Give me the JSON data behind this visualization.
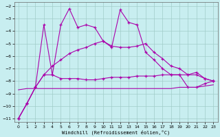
{
  "xlabel": "Windchill (Refroidissement éolien,°C)",
  "bg_color": "#c8eef0",
  "grid_color": "#a0ccc8",
  "line_color": "#aa00aa",
  "xmin": 0,
  "xmax": 23,
  "ymin": -11,
  "ymax": -2,
  "hours": [
    0,
    1,
    2,
    3,
    4,
    5,
    6,
    7,
    8,
    9,
    10,
    11,
    12,
    13,
    14,
    15,
    16,
    17,
    18,
    19,
    20,
    21,
    22,
    23
  ],
  "line1": [
    -11.0,
    -9.8,
    -8.5,
    -3.5,
    -7.5,
    -3.5,
    -2.2,
    -3.7,
    -3.5,
    -3.7,
    -4.8,
    -5.3,
    -2.3,
    -3.3,
    -3.5,
    -5.7,
    -6.3,
    -7.0,
    -7.5,
    -7.5,
    -8.5,
    -8.5,
    -8.2,
    -8.0
  ],
  "line2": [
    -11.0,
    -9.8,
    -8.5,
    -7.5,
    -6.8,
    -6.3,
    -5.8,
    -5.5,
    -5.3,
    -5.0,
    -4.8,
    -5.2,
    -5.3,
    -5.3,
    -5.2,
    -5.0,
    -5.7,
    -6.2,
    -6.8,
    -7.0,
    -7.5,
    -7.3,
    -7.8,
    -8.0
  ],
  "line3": [
    -11.0,
    -9.8,
    -8.5,
    -7.5,
    -7.5,
    -7.8,
    -7.8,
    -7.8,
    -7.9,
    -7.9,
    -7.8,
    -7.7,
    -7.7,
    -7.7,
    -7.6,
    -7.6,
    -7.6,
    -7.5,
    -7.5,
    -7.5,
    -7.5,
    -7.5,
    -7.8,
    -8.0
  ],
  "line4": [
    -8.7,
    -8.6,
    -8.6,
    -8.6,
    -8.6,
    -8.6,
    -8.6,
    -8.6,
    -8.6,
    -8.6,
    -8.6,
    -8.6,
    -8.6,
    -8.6,
    -8.6,
    -8.6,
    -8.6,
    -8.6,
    -8.6,
    -8.5,
    -8.5,
    -8.5,
    -8.4,
    -8.3
  ]
}
